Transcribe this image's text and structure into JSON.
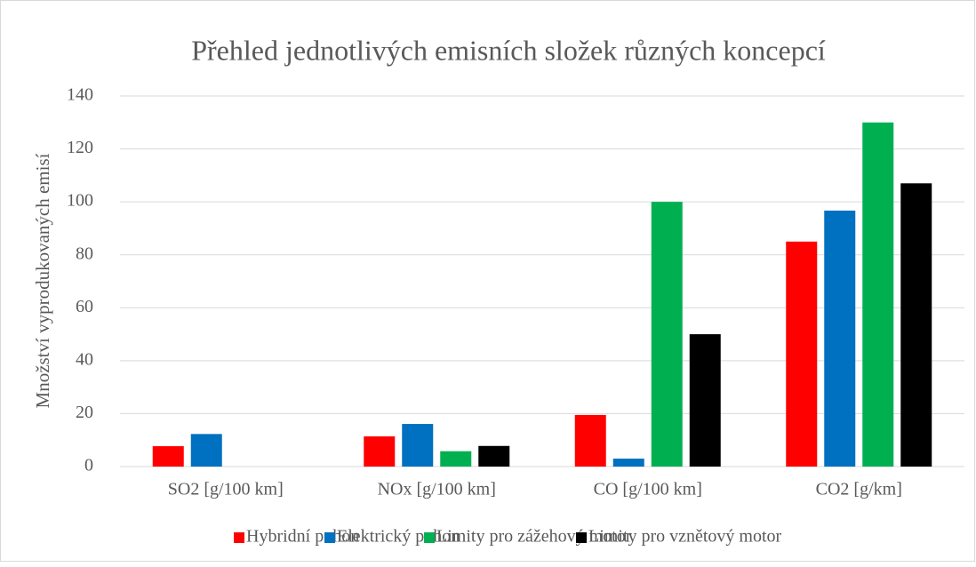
{
  "chart_data": {
    "type": "bar",
    "title": "Přehled jednotlivých emisních složek různých koncepcí",
    "y_label": "Množství vyprodukovaných emisí",
    "categories": [
      "SO2 [g/100 km]",
      "NOx [g/100 km]",
      "CO [g/100 km]",
      "CO2 [g/km]"
    ],
    "series": [
      {
        "name": "Hybridní pohon",
        "color": "#ff0000",
        "values": [
          7.7,
          11.4,
          19.5,
          85
        ]
      },
      {
        "name": "Elektrický pohon",
        "color": "#0070c0",
        "values": [
          12.3,
          16.1,
          3,
          96.7
        ]
      },
      {
        "name": "Limity pro zážehový motor",
        "color": "#00b050",
        "values": [
          0,
          5.8,
          100,
          130
        ]
      },
      {
        "name": "Limity pro vznětový motor",
        "color": "#000000",
        "values": [
          0,
          7.8,
          50,
          107
        ]
      }
    ],
    "ylim": [
      0,
      140
    ],
    "yticks": [
      0,
      20,
      40,
      60,
      80,
      100,
      120,
      140
    ],
    "grid": true,
    "legend": "bottom"
  }
}
